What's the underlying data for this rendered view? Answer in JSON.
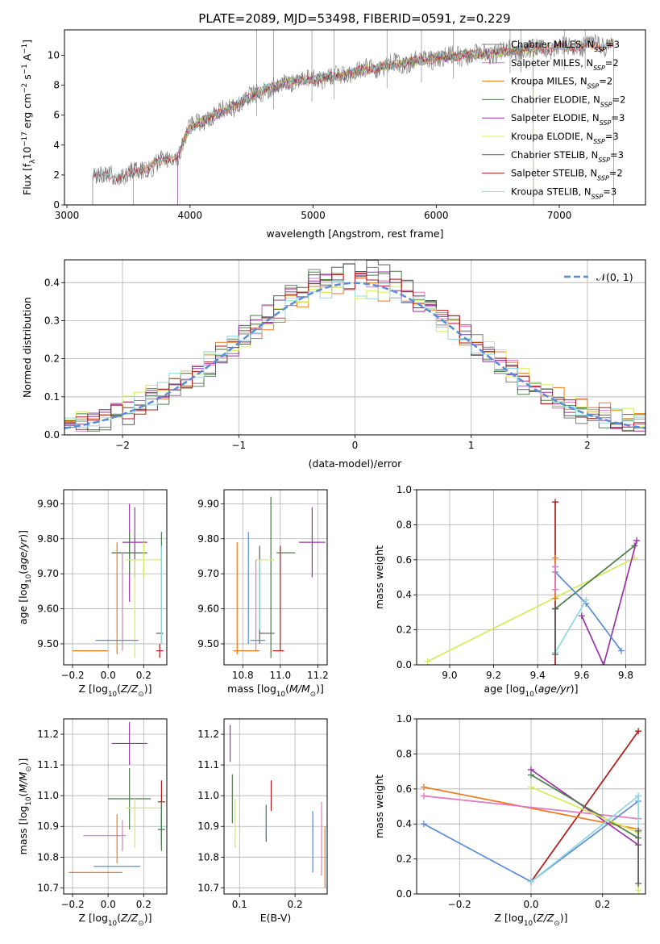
{
  "figure_title": "PLATE=2089, MJD=53498, FIBERID=0591, z=0.229",
  "palette": {
    "chabrier_miles": "#7f7f7f",
    "salpeter_miles": "#e377c2",
    "kroupa_miles": "#ec7a1c",
    "chabrier_elodie": "#4e7d4e",
    "salpeter_elodie": "#9a32a8",
    "kroupa_elodie": "#d4ec5a",
    "chabrier_stelib": "#5a5a5a",
    "salpeter_stelib": "#b01a1a",
    "kroupa_stelib": "#8fd8e0",
    "blue": "#5b8bd6",
    "normal": "#5b8bd6"
  },
  "chart_data": [
    {
      "id": "spectrum",
      "type": "line",
      "title": "PLATE=2089, MJD=53498, FIBERID=0591, z=0.229",
      "xlabel": "wavelength [Angstrom, rest frame]",
      "ylabel": "Flux [f",
      "ylabel_sub": "λ",
      "ylabel_rest": "10",
      "ylabel_sup": "−17",
      "ylabel_units": " erg cm",
      "ylabel_sup2": "−2",
      "ylabel_s": " s",
      "ylabel_sup3": "−1",
      "ylabel_a": " A",
      "ylabel_sup4": "−1",
      "ylabel_end": "]",
      "xlim": [
        2980,
        7700
      ],
      "ylim": [
        0,
        11.7
      ],
      "xticks": [
        3000,
        4000,
        5000,
        6000,
        7000
      ],
      "yticks": [
        0,
        2,
        4,
        6,
        8,
        10
      ],
      "grid": false,
      "legend_position": "right",
      "legend": [
        {
          "label": "Chabrier MILES, N",
          "sub": "SSP",
          "rest": "=3",
          "color": "#7f7f7f"
        },
        {
          "label": "Salpeter MILES, N",
          "sub": "SSP",
          "rest": "=2",
          "color": "#e377c2"
        },
        {
          "label": "Kroupa MILES, N",
          "sub": "SSP",
          "rest": "=2",
          "color": "#ec7a1c"
        },
        {
          "label": "Chabrier ELODIE, N",
          "sub": "SSP",
          "rest": "=2",
          "color": "#4e7d4e"
        },
        {
          "label": "Salpeter ELODIE, N",
          "sub": "SSP",
          "rest": "=3",
          "color": "#9a32a8"
        },
        {
          "label": "Kroupa ELODIE, N",
          "sub": "SSP",
          "rest": "=3",
          "color": "#d4ec5a"
        },
        {
          "label": "Chabrier STELIB, N",
          "sub": "SSP",
          "rest": "=3",
          "color": "#5a5a5a"
        },
        {
          "label": "Salpeter STELIB, N",
          "sub": "SSP",
          "rest": "=2",
          "color": "#b01a1a"
        },
        {
          "label": "Kroupa STELIB, N",
          "sub": "SSP",
          "rest": "=3",
          "color": "#8fd8e0"
        }
      ],
      "series_coverage": [
        {
          "color": "#7f7f7f",
          "x": [
            3210,
            7440
          ]
        },
        {
          "color": "#e377c2",
          "x": [
            3540,
            7440
          ]
        },
        {
          "color": "#ec7a1c",
          "x": [
            3540,
            7440
          ]
        },
        {
          "color": "#4e7d4e",
          "x": [
            3900,
            6790
          ]
        },
        {
          "color": "#9a32a8",
          "x": [
            3900,
            6790
          ]
        },
        {
          "color": "#d4ec5a",
          "x": [
            3920,
            6790
          ]
        },
        {
          "color": "#5a5a5a",
          "x": [
            3210,
            7440
          ]
        },
        {
          "color": "#b01a1a",
          "x": [
            3210,
            7440
          ]
        },
        {
          "color": "#8fd8e0",
          "x": [
            3210,
            7440
          ]
        }
      ],
      "continuum": {
        "x": [
          3210,
          3400,
          3600,
          3800,
          3900,
          4000,
          4200,
          4400,
          4600,
          4800,
          5000,
          5200,
          5400,
          5600,
          5800,
          6000,
          6200,
          6400,
          6600,
          6800,
          7000,
          7200,
          7440
        ],
        "y": [
          2.0,
          1.9,
          2.3,
          3.0,
          3.3,
          5.2,
          6.0,
          6.8,
          7.7,
          8.2,
          8.4,
          8.6,
          9.0,
          9.3,
          9.6,
          9.8,
          10.0,
          10.1,
          10.3,
          10.4,
          10.5,
          10.6,
          10.7
        ]
      },
      "data_noise_amplitude": 0.8
    },
    {
      "id": "residuals",
      "type": "histogram",
      "xlabel": "(data-model)/error",
      "ylabel": "Normed distribution",
      "xlim": [
        -2.5,
        2.5
      ],
      "ylim": [
        0,
        0.46
      ],
      "xticks": [
        -2,
        -1,
        0,
        1,
        2
      ],
      "yticks": [
        0.0,
        0.1,
        0.2,
        0.3,
        0.4
      ],
      "grid": true,
      "legend_position": "top-right",
      "legend_label": "𝒩(0, 1)",
      "bin_width": 0.1,
      "series_colors": [
        "#7f7f7f",
        "#e377c2",
        "#ec7a1c",
        "#4e7d4e",
        "#9a32a8",
        "#d4ec5a",
        "#5a5a5a",
        "#b01a1a",
        "#8fd8e0"
      ]
    },
    {
      "id": "age-vs-Z",
      "type": "errorbar",
      "xlabel": "Z [log",
      "xlabel_sub": "10",
      "xlabel_rest": "(Z/Z",
      "xlabel_sub2": "⊙",
      "xlabel_end": ")]",
      "ylabel": "age  [log",
      "ylabel_sub": "10",
      "ylabel_rest": "(age/yr)]",
      "xlim": [
        -0.25,
        0.33
      ],
      "ylim": [
        9.44,
        9.94
      ],
      "xticks": [
        -0.2,
        0.0,
        0.2
      ],
      "yticks": [
        9.5,
        9.6,
        9.7,
        9.8,
        9.9
      ],
      "grid": true,
      "points": [
        {
          "x": 0.12,
          "y": 9.76,
          "xerr": 0.1,
          "yerr": 0.14,
          "color": "#9a32a8"
        },
        {
          "x": 0.12,
          "y": 9.76,
          "xerr": 0.1,
          "yerr": 0.06,
          "color": "#4e7d4e"
        },
        {
          "x": 0.15,
          "y": 9.79,
          "xerr": 0.07,
          "yerr": 0.1,
          "color": "#9a32a8"
        },
        {
          "x": 0.2,
          "y": 9.74,
          "xerr": 0.1,
          "yerr": 0.05,
          "color": "#d4ec5a"
        },
        {
          "x": 0.05,
          "y": 9.63,
          "xerr": 0.0,
          "yerr": 0.16,
          "color": "#ec7a1c"
        },
        {
          "x": 0.08,
          "y": 9.62,
          "xerr": 0.0,
          "yerr": 0.14,
          "color": "#e377c2"
        },
        {
          "x": 0.15,
          "y": 9.6,
          "xerr": 0.0,
          "yerr": 0.14,
          "color": "#d4ec5a"
        },
        {
          "x": -0.1,
          "y": 9.48,
          "xerr": 0.1,
          "yerr": 0.0,
          "color": "#ec7a1c"
        },
        {
          "x": 0.05,
          "y": 9.51,
          "xerr": 0.12,
          "yerr": 0.0,
          "color": "#5b8bd6"
        },
        {
          "x": 0.29,
          "y": 9.53,
          "xerr": 0.02,
          "yerr": 0.0,
          "color": "#5a5a5a"
        },
        {
          "x": 0.3,
          "y": 9.66,
          "xerr": 0.0,
          "yerr": 0.16,
          "color": "#4e7d4e"
        },
        {
          "x": 0.3,
          "y": 9.64,
          "xerr": 0.0,
          "yerr": 0.14,
          "color": "#8fd8e0"
        },
        {
          "x": 0.29,
          "y": 9.48,
          "xerr": 0.02,
          "yerr": 0.02,
          "color": "#b01a1a"
        }
      ]
    },
    {
      "id": "age-vs-mass",
      "type": "errorbar",
      "xlabel": "mass [log",
      "xlabel_sub": "10",
      "xlabel_rest": "(M/M",
      "xlabel_sub2": "⊙",
      "xlabel_end": ")]",
      "xlim": [
        10.7,
        11.25
      ],
      "ylim": [
        9.44,
        9.94
      ],
      "xticks": [
        10.8,
        11.0,
        11.2
      ],
      "yticks": [
        9.5,
        9.6,
        9.7,
        9.8,
        9.9
      ],
      "grid": true,
      "points": [
        {
          "x": 10.77,
          "y": 9.63,
          "xerr": 0.0,
          "yerr": 0.16,
          "color": "#ec7a1c"
        },
        {
          "x": 10.83,
          "y": 9.66,
          "xerr": 0.0,
          "yerr": 0.16,
          "color": "#5b8bd6"
        },
        {
          "x": 10.87,
          "y": 9.61,
          "xerr": 0.0,
          "yerr": 0.13,
          "color": "#e377c2"
        },
        {
          "x": 10.89,
          "y": 9.64,
          "xerr": 0.0,
          "yerr": 0.14,
          "color": "#5a5a5a"
        },
        {
          "x": 10.89,
          "y": 9.64,
          "xerr": 0.0,
          "yerr": 0.1,
          "color": "#8fd8e0"
        },
        {
          "x": 10.95,
          "y": 9.69,
          "xerr": 0.0,
          "yerr": 0.23,
          "color": "#4e7d4e"
        },
        {
          "x": 10.92,
          "y": 9.74,
          "xerr": 0.05,
          "yerr": 0.0,
          "color": "#d4ec5a"
        },
        {
          "x": 11.03,
          "y": 9.76,
          "xerr": 0.05,
          "yerr": 0.0,
          "color": "#4e7d4e"
        },
        {
          "x": 11.17,
          "y": 9.79,
          "xerr": 0.07,
          "yerr": 0.1,
          "color": "#9a32a8"
        },
        {
          "x": 11.0,
          "y": 9.63,
          "xerr": 0.0,
          "yerr": 0.15,
          "color": "#b01a1a"
        },
        {
          "x": 10.99,
          "y": 9.48,
          "xerr": 0.03,
          "yerr": 0.0,
          "color": "#b01a1a"
        },
        {
          "x": 10.82,
          "y": 9.48,
          "xerr": 0.07,
          "yerr": 0.0,
          "color": "#ec7a1c"
        },
        {
          "x": 10.88,
          "y": 9.51,
          "xerr": 0.04,
          "yerr": 0.0,
          "color": "#5b8bd6"
        },
        {
          "x": 10.93,
          "y": 9.53,
          "xerr": 0.04,
          "yerr": 0.0,
          "color": "#5a5a5a"
        }
      ]
    },
    {
      "id": "weight-vs-age",
      "type": "line",
      "xlabel": "age  [log",
      "xlabel_sub": "10",
      "xlabel_rest": "(age/yr)]",
      "ylabel": "mass weight",
      "xlim": [
        8.85,
        9.89
      ],
      "ylim": [
        0,
        1
      ],
      "xticks": [
        9.0,
        9.2,
        9.4,
        9.6,
        9.8
      ],
      "yticks": [
        0.0,
        0.2,
        0.4,
        0.6,
        0.8,
        1.0
      ],
      "grid": true,
      "series": [
        {
          "color": "#d4ec5a",
          "x": [
            8.9,
            9.84
          ],
          "y": [
            0.02,
            0.61
          ]
        },
        {
          "color": "#4e7d4e",
          "x": [
            9.48,
            9.84
          ],
          "y": [
            0.32,
            0.68
          ]
        },
        {
          "color": "#9a32a8",
          "x": [
            9.6,
            9.7,
            9.85
          ],
          "y": [
            0.28,
            0.0,
            0.71
          ]
        },
        {
          "color": "#5b8bd6",
          "x": [
            9.48,
            9.48,
            9.62,
            9.78
          ],
          "y": [
            0.56,
            0.53,
            0.35,
            0.08
          ]
        },
        {
          "color": "#8fd8e0",
          "x": [
            9.48,
            9.48,
            9.62
          ],
          "y": [
            0.56,
            0.07,
            0.37
          ]
        },
        {
          "color": "#b01a1a",
          "x": [
            9.48,
            9.48
          ],
          "y": [
            0.0,
            0.93
          ]
        },
        {
          "color": "#ec7a1c",
          "x": [
            9.48,
            9.48
          ],
          "y": [
            0.38,
            0.61
          ]
        },
        {
          "color": "#e377c2",
          "x": [
            9.48,
            9.48
          ],
          "y": [
            0.43,
            0.56
          ]
        },
        {
          "color": "#5a5a5a",
          "x": [
            9.48,
            9.48
          ],
          "y": [
            0.06,
            0.32
          ]
        }
      ]
    },
    {
      "id": "mass-vs-Z",
      "type": "errorbar",
      "xlabel": "Z [log",
      "xlabel_sub": "10",
      "xlabel_rest": "(Z/Z",
      "xlabel_sub2": "⊙",
      "xlabel_end": ")]",
      "ylabel": "mass [log",
      "ylabel_sub": "10",
      "ylabel_rest": "(M/M",
      "ylabel_sub2": "⊙",
      "ylabel_end": ")]",
      "xlim": [
        -0.25,
        0.33
      ],
      "ylim": [
        10.68,
        11.25
      ],
      "xticks": [
        -0.2,
        0.0,
        0.2
      ],
      "yticks": [
        10.7,
        10.8,
        10.9,
        11.0,
        11.1,
        11.2
      ],
      "grid": true,
      "points": [
        {
          "x": 0.12,
          "y": 11.17,
          "xerr": 0.1,
          "yerr": 0.07,
          "color": "#9a32a8"
        },
        {
          "x": 0.12,
          "y": 10.99,
          "xerr": 0.12,
          "yerr": 0.1,
          "color": "#4e7d4e"
        },
        {
          "x": 0.2,
          "y": 10.96,
          "xerr": 0.1,
          "yerr": 0.0,
          "color": "#d4ec5a"
        },
        {
          "x": 0.3,
          "y": 10.98,
          "xerr": 0.02,
          "yerr": 0.07,
          "color": "#b01a1a"
        },
        {
          "x": 0.3,
          "y": 10.9,
          "xerr": 0.02,
          "yerr": 0.06,
          "color": "#8fd8e0"
        },
        {
          "x": 0.3,
          "y": 10.89,
          "xerr": 0.02,
          "yerr": 0.05,
          "color": "#5a5a5a"
        },
        {
          "x": 0.3,
          "y": 10.9,
          "xerr": 0.0,
          "yerr": 0.08,
          "color": "#4e7d4e"
        },
        {
          "x": -0.02,
          "y": 10.87,
          "xerr": 0.12,
          "yerr": 0.0,
          "color": "#e377c2"
        },
        {
          "x": 0.08,
          "y": 10.87,
          "xerr": 0.0,
          "yerr": 0.05,
          "color": "#e377c2"
        },
        {
          "x": 0.05,
          "y": 10.86,
          "xerr": 0.0,
          "yerr": 0.08,
          "color": "#ec7a1c"
        },
        {
          "x": 0.15,
          "y": 10.91,
          "xerr": 0.0,
          "yerr": 0.08,
          "color": "#d4ec5a"
        },
        {
          "x": 0.05,
          "y": 10.77,
          "xerr": 0.13,
          "yerr": 0.0,
          "color": "#5b8bd6"
        },
        {
          "x": -0.07,
          "y": 10.75,
          "xerr": 0.15,
          "yerr": 0.0,
          "color": "#ec7a1c"
        }
      ]
    },
    {
      "id": "mass-vs-ebv",
      "type": "errorbar",
      "xlabel": "E(B-V)",
      "xlim": [
        0.072,
        0.258
      ],
      "ylim": [
        10.68,
        11.25
      ],
      "xticks": [
        0.1,
        0.2
      ],
      "yticks": [
        10.7,
        10.8,
        10.9,
        11.0,
        11.1,
        11.2
      ],
      "grid": true,
      "points": [
        {
          "x": 0.083,
          "y": 11.17,
          "xerr": 0.0,
          "yerr": 0.06,
          "color": "#9a32a8"
        },
        {
          "x": 0.087,
          "y": 10.99,
          "xerr": 0.0,
          "yerr": 0.08,
          "color": "#4e7d4e"
        },
        {
          "x": 0.092,
          "y": 10.91,
          "xerr": 0.0,
          "yerr": 0.08,
          "color": "#d4ec5a"
        },
        {
          "x": 0.148,
          "y": 10.91,
          "xerr": 0.0,
          "yerr": 0.06,
          "color": "#5a5a5a"
        },
        {
          "x": 0.147,
          "y": 10.92,
          "xerr": 0.0,
          "yerr": 0.05,
          "color": "#8fd8e0"
        },
        {
          "x": 0.157,
          "y": 11.0,
          "xerr": 0.0,
          "yerr": 0.05,
          "color": "#b01a1a"
        },
        {
          "x": 0.232,
          "y": 10.85,
          "xerr": 0.0,
          "yerr": 0.1,
          "color": "#5b8bd6"
        },
        {
          "x": 0.248,
          "y": 10.86,
          "xerr": 0.0,
          "yerr": 0.12,
          "color": "#e377c2"
        },
        {
          "x": 0.254,
          "y": 10.8,
          "xerr": 0.0,
          "yerr": 0.1,
          "color": "#ec7a1c"
        }
      ]
    },
    {
      "id": "weight-vs-Z",
      "type": "line",
      "xlabel": "Z [log",
      "xlabel_sub": "10",
      "xlabel_rest": "(Z/Z",
      "xlabel_sub2": "⊙",
      "xlabel_end": ")]",
      "ylabel": "mass weight",
      "xlim": [
        -0.32,
        0.32
      ],
      "ylim": [
        0,
        1
      ],
      "xticks": [
        -0.2,
        0.0,
        0.2
      ],
      "yticks": [
        0.0,
        0.2,
        0.4,
        0.6,
        0.8,
        1.0
      ],
      "grid": true,
      "series": [
        {
          "color": "#b01a1a",
          "x": [
            0.0,
            0.3
          ],
          "y": [
            0.07,
            0.93
          ]
        },
        {
          "color": "#ec7a1c",
          "x": [
            -0.3,
            0.3
          ],
          "y": [
            0.61,
            0.37
          ]
        },
        {
          "color": "#e377c2",
          "x": [
            -0.3,
            0.3
          ],
          "y": [
            0.56,
            0.43
          ]
        },
        {
          "color": "#5b8bd6",
          "x": [
            -0.3,
            0.0,
            0.3,
            0.3
          ],
          "y": [
            0.4,
            0.07,
            0.53,
            0.56
          ]
        },
        {
          "color": "#9a32a8",
          "x": [
            0.0,
            0.3
          ],
          "y": [
            0.71,
            0.28
          ]
        },
        {
          "color": "#4e7d4e",
          "x": [
            0.0,
            0.3
          ],
          "y": [
            0.68,
            0.32
          ]
        },
        {
          "color": "#d4ec5a",
          "x": [
            0.0,
            0.3,
            0.3
          ],
          "y": [
            0.61,
            0.35,
            0.02
          ]
        },
        {
          "color": "#8fd8e0",
          "x": [
            0.0,
            0.3,
            0.3
          ],
          "y": [
            0.07,
            0.56,
            0.37
          ]
        },
        {
          "color": "#5a5a5a",
          "x": [
            0.3,
            0.3
          ],
          "y": [
            0.06,
            0.36
          ]
        }
      ]
    }
  ]
}
